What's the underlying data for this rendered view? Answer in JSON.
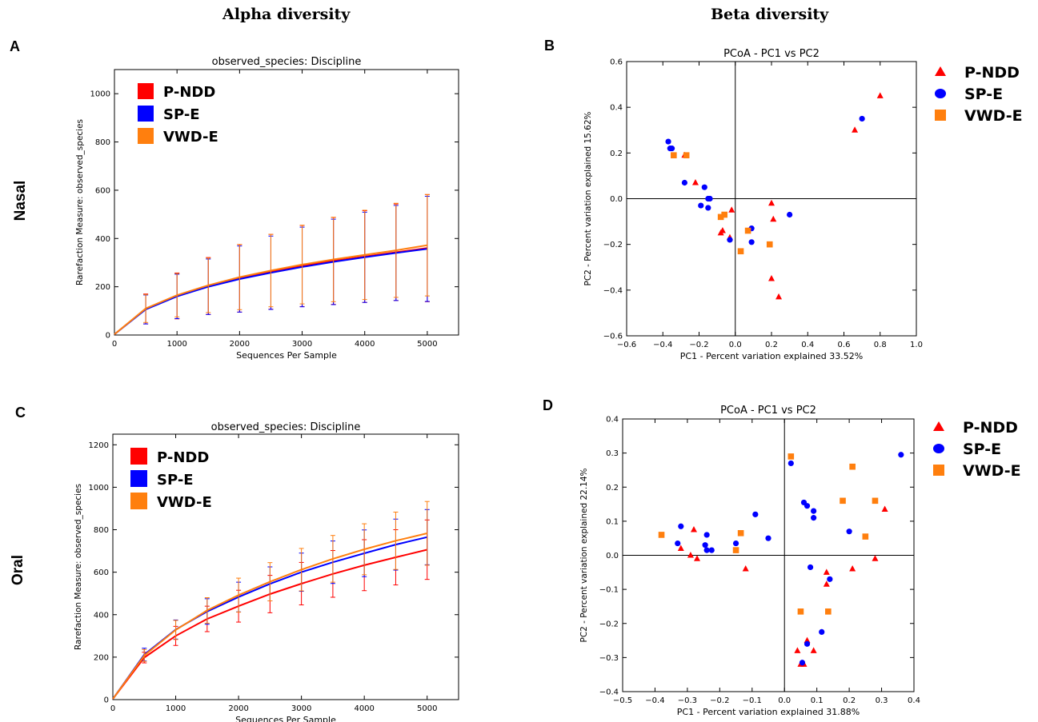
{
  "headers": {
    "alpha": "Alpha diversity",
    "beta": "Beta diversity"
  },
  "panel_letters": {
    "a": "A",
    "b": "B",
    "c": "C",
    "d": "D"
  },
  "row_labels": {
    "nasal": "Nasal",
    "oral": "Oral"
  },
  "colors": {
    "P-NDD": "#ff0000",
    "SP-E": "#0000ff",
    "VWD-E": "#ff7f0e"
  },
  "chart_data": [
    {
      "id": "A",
      "type": "line",
      "title": "observed_species: Discipline",
      "xlabel": "Sequences Per Sample",
      "ylabel": "Rarefaction Measure: observed_species",
      "xlim": [
        0,
        5500
      ],
      "ylim": [
        0,
        1100
      ],
      "xticks": [
        0,
        1000,
        2000,
        3000,
        4000,
        5000
      ],
      "yticks": [
        0,
        200,
        400,
        600,
        800,
        1000
      ],
      "legend_position": "top-left",
      "x": [
        0,
        500,
        1000,
        1500,
        2000,
        2500,
        3000,
        3500,
        4000,
        4500,
        5000
      ],
      "series": [
        {
          "name": "P-NDD",
          "values": [
            3,
            108,
            162,
            203,
            235,
            262,
            286,
            307,
            325,
            343,
            360
          ],
          "error": [
            0,
            62,
            95,
            118,
            140,
            155,
            168,
            180,
            190,
            200,
            222
          ]
        },
        {
          "name": "SP-E",
          "values": [
            3,
            106,
            160,
            200,
            232,
            258,
            282,
            303,
            322,
            340,
            357
          ],
          "error": [
            0,
            60,
            92,
            115,
            137,
            152,
            165,
            177,
            187,
            197,
            218
          ]
        },
        {
          "name": "VWD-E",
          "values": [
            3,
            110,
            165,
            206,
            240,
            267,
            292,
            313,
            332,
            351,
            372
          ],
          "error": [
            0,
            58,
            90,
            113,
            135,
            150,
            163,
            175,
            185,
            195,
            210
          ]
        }
      ]
    },
    {
      "id": "B",
      "type": "scatter",
      "title": "PCoA - PC1 vs PC2",
      "xlabel": "PC1 - Percent variation explained 33.52%",
      "ylabel": "PC2 - Percent variation explained 15.62%",
      "xlim": [
        -0.6,
        1.0
      ],
      "ylim": [
        -0.6,
        0.6
      ],
      "xticks": [
        -0.6,
        -0.4,
        -0.2,
        0.0,
        0.2,
        0.4,
        0.6,
        0.8,
        1.0
      ],
      "yticks": [
        -0.6,
        -0.4,
        -0.2,
        0.0,
        0.2,
        0.4,
        0.6
      ],
      "legend_position": "outside-right",
      "series": [
        {
          "name": "P-NDD",
          "marker": "triangle",
          "points": [
            [
              0.8,
              0.45
            ],
            [
              0.66,
              0.3
            ],
            [
              -0.28,
              0.19
            ],
            [
              -0.22,
              0.07
            ],
            [
              -0.02,
              -0.05
            ],
            [
              -0.08,
              -0.15
            ],
            [
              -0.07,
              -0.14
            ],
            [
              -0.03,
              -0.17
            ],
            [
              0.2,
              -0.02
            ],
            [
              0.21,
              -0.09
            ],
            [
              0.2,
              -0.35
            ],
            [
              0.24,
              -0.43
            ]
          ]
        },
        {
          "name": "SP-E",
          "marker": "circle",
          "points": [
            [
              0.7,
              0.35
            ],
            [
              -0.37,
              0.25
            ],
            [
              -0.36,
              0.22
            ],
            [
              -0.35,
              0.22
            ],
            [
              -0.28,
              0.07
            ],
            [
              -0.17,
              0.05
            ],
            [
              -0.15,
              0.0
            ],
            [
              -0.14,
              0.0
            ],
            [
              -0.19,
              -0.03
            ],
            [
              -0.15,
              -0.04
            ],
            [
              -0.03,
              -0.18
            ],
            [
              0.09,
              -0.13
            ],
            [
              0.09,
              -0.19
            ],
            [
              0.3,
              -0.07
            ]
          ]
        },
        {
          "name": "VWD-E",
          "marker": "square",
          "points": [
            [
              -0.34,
              0.19
            ],
            [
              -0.27,
              0.19
            ],
            [
              -0.08,
              -0.08
            ],
            [
              -0.06,
              -0.07
            ],
            [
              0.07,
              -0.14
            ],
            [
              0.03,
              -0.23
            ],
            [
              0.19,
              -0.2
            ]
          ]
        }
      ]
    },
    {
      "id": "C",
      "type": "line",
      "title": "observed_species: Discipline",
      "xlabel": "Sequences Per Sample",
      "ylabel": "Rarefaction Measure: observed_species",
      "xlim": [
        0,
        5500
      ],
      "ylim": [
        0,
        1250
      ],
      "xticks": [
        0,
        1000,
        2000,
        3000,
        4000,
        5000
      ],
      "yticks": [
        0,
        200,
        400,
        600,
        800,
        1000,
        1200
      ],
      "legend_position": "top-left",
      "x": [
        0,
        500,
        1000,
        1500,
        2000,
        2500,
        3000,
        3500,
        4000,
        4500,
        5000
      ],
      "series": [
        {
          "name": "P-NDD",
          "values": [
            3,
            198,
            300,
            380,
            440,
            497,
            546,
            592,
            633,
            670,
            706
          ],
          "error": [
            0,
            25,
            45,
            60,
            75,
            88,
            100,
            110,
            120,
            130,
            140
          ]
        },
        {
          "name": "SP-E",
          "values": [
            3,
            212,
            330,
            415,
            483,
            545,
            600,
            647,
            689,
            730,
            765
          ],
          "error": [
            0,
            30,
            45,
            60,
            70,
            80,
            90,
            100,
            110,
            120,
            130
          ]
        },
        {
          "name": "VWD-E",
          "values": [
            3,
            208,
            328,
            420,
            492,
            555,
            612,
            663,
            708,
            748,
            783
          ],
          "error": [
            0,
            28,
            45,
            60,
            80,
            90,
            100,
            110,
            120,
            135,
            150
          ]
        }
      ]
    },
    {
      "id": "D",
      "type": "scatter",
      "title": "PCoA - PC1 vs PC2",
      "xlabel": "PC1 - Percent variation explained 31.88%",
      "ylabel": "PC2 - Percent variation explained 22.14%",
      "xlim": [
        -0.5,
        0.4
      ],
      "ylim": [
        -0.4,
        0.4
      ],
      "xticks": [
        -0.5,
        -0.4,
        -0.3,
        -0.2,
        -0.1,
        0.0,
        0.1,
        0.2,
        0.3,
        0.4
      ],
      "yticks": [
        -0.4,
        -0.3,
        -0.2,
        -0.1,
        0.0,
        0.1,
        0.2,
        0.3,
        0.4
      ],
      "legend_position": "outside-right",
      "series": [
        {
          "name": "P-NDD",
          "marker": "triangle",
          "points": [
            [
              -0.32,
              0.02
            ],
            [
              -0.28,
              0.075
            ],
            [
              -0.29,
              0.0
            ],
            [
              -0.27,
              -0.01
            ],
            [
              -0.12,
              -0.04
            ],
            [
              0.31,
              0.135
            ],
            [
              0.28,
              -0.01
            ],
            [
              0.21,
              -0.04
            ],
            [
              0.13,
              -0.05
            ],
            [
              0.13,
              -0.085
            ],
            [
              0.07,
              -0.25
            ],
            [
              0.04,
              -0.28
            ],
            [
              0.06,
              -0.32
            ],
            [
              0.05,
              -0.32
            ],
            [
              0.09,
              -0.28
            ]
          ]
        },
        {
          "name": "SP-E",
          "marker": "circle",
          "points": [
            [
              -0.32,
              0.085
            ],
            [
              -0.33,
              0.035
            ],
            [
              -0.24,
              0.06
            ],
            [
              -0.245,
              0.03
            ],
            [
              -0.24,
              0.015
            ],
            [
              -0.225,
              0.015
            ],
            [
              -0.15,
              0.035
            ],
            [
              -0.09,
              0.12
            ],
            [
              -0.05,
              0.05
            ],
            [
              0.02,
              0.27
            ],
            [
              0.06,
              0.155
            ],
            [
              0.07,
              0.145
            ],
            [
              0.09,
              0.13
            ],
            [
              0.09,
              0.11
            ],
            [
              0.08,
              -0.035
            ],
            [
              0.2,
              0.07
            ],
            [
              0.36,
              0.295
            ],
            [
              0.14,
              -0.07
            ],
            [
              0.115,
              -0.225
            ],
            [
              0.07,
              -0.26
            ],
            [
              0.055,
              -0.315
            ]
          ]
        },
        {
          "name": "VWD-E",
          "marker": "square",
          "points": [
            [
              -0.38,
              0.06
            ],
            [
              -0.15,
              0.015
            ],
            [
              -0.135,
              0.065
            ],
            [
              0.02,
              0.29
            ],
            [
              0.21,
              0.26
            ],
            [
              0.18,
              0.16
            ],
            [
              0.28,
              0.16
            ],
            [
              0.25,
              0.055
            ],
            [
              0.05,
              -0.165
            ],
            [
              0.135,
              -0.165
            ]
          ]
        }
      ]
    }
  ]
}
